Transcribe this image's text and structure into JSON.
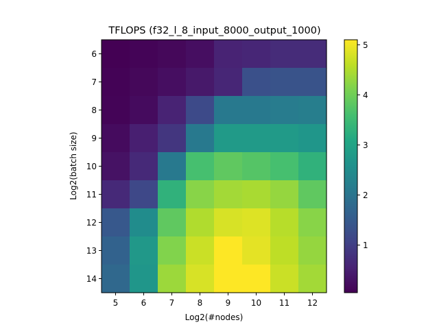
{
  "chart_data": {
    "type": "heatmap",
    "title": "TFLOPS (f32_l_8_input_8000_output_1000)",
    "xlabel": "Log2(#nodes)",
    "ylabel": "Log2(batch size)",
    "x_categories": [
      "5",
      "6",
      "7",
      "8",
      "9",
      "10",
      "11",
      "12"
    ],
    "y_categories": [
      "6",
      "7",
      "8",
      "9",
      "10",
      "11",
      "12",
      "13",
      "14"
    ],
    "values": [
      [
        0.05,
        0.1,
        0.15,
        0.25,
        0.55,
        0.6,
        0.7,
        0.7
      ],
      [
        0.08,
        0.15,
        0.25,
        0.4,
        0.6,
        1.3,
        1.35,
        1.35
      ],
      [
        0.1,
        0.2,
        0.55,
        1.2,
        2.1,
        2.1,
        2.15,
        2.2
      ],
      [
        0.2,
        0.5,
        0.85,
        2.1,
        2.8,
        2.8,
        2.8,
        2.7
      ],
      [
        0.3,
        0.65,
        2.1,
        3.6,
        3.85,
        3.75,
        3.6,
        3.3
      ],
      [
        0.65,
        1.15,
        3.3,
        4.2,
        4.4,
        4.45,
        4.3,
        3.85
      ],
      [
        1.45,
        2.5,
        3.85,
        4.5,
        4.8,
        4.85,
        4.55,
        4.2
      ],
      [
        1.65,
        2.75,
        4.15,
        4.7,
        5.1,
        4.9,
        4.6,
        4.3
      ],
      [
        1.75,
        2.7,
        4.35,
        4.8,
        5.1,
        5.1,
        4.7,
        4.4
      ]
    ],
    "colorbar": {
      "colormap": "viridis",
      "range": [
        0.05,
        5.1
      ],
      "ticks": [
        "1",
        "2",
        "3",
        "4",
        "5"
      ]
    },
    "grid": false
  }
}
